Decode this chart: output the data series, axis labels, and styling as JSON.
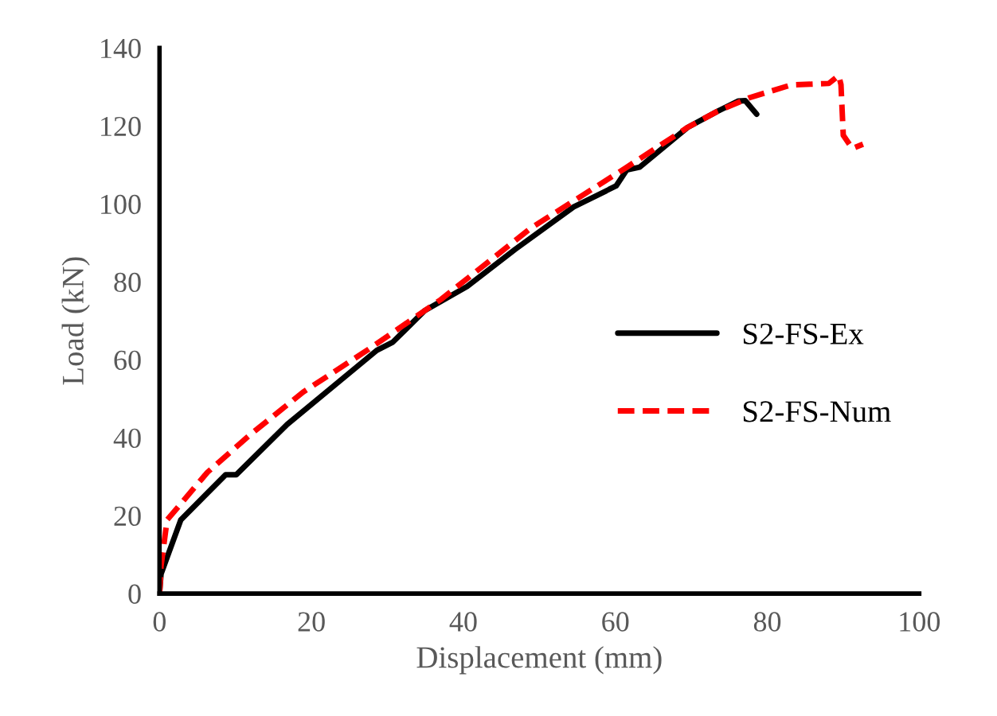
{
  "chart_data": {
    "type": "line",
    "xlabel": "Displacement (mm)",
    "ylabel": "Load (kN)",
    "xlim": [
      0,
      100
    ],
    "xticks": [
      0,
      20,
      40,
      60,
      80,
      100
    ],
    "ylim": [
      0,
      140
    ],
    "yticks": [
      0,
      20,
      40,
      60,
      80,
      100,
      120,
      140
    ],
    "grid": false,
    "legend": "right",
    "marker": "none",
    "series": [
      {
        "name": "S2-FS-Ex",
        "color": "#000000",
        "line_style": "solid",
        "x": [
          0,
          0.2,
          2.8,
          8.7,
          10.1,
          16.8,
          28.6,
          30.7,
          34.9,
          40.5,
          46.8,
          54.5,
          60.1,
          61.5,
          63.2,
          69.5,
          73.4,
          76.2,
          77.1,
          78.6
        ],
        "values": [
          0,
          5,
          18.9,
          30.5,
          30.5,
          43.4,
          62.4,
          64.5,
          72.6,
          78.8,
          88.3,
          99.2,
          104.6,
          108.7,
          109.4,
          119.6,
          123.7,
          126.4,
          126.5,
          123
        ]
      },
      {
        "name": "S2-FS-Num",
        "color": "#ff0000",
        "line_style": "dashed",
        "x": [
          0,
          0.2,
          1,
          6.3,
          11.9,
          18.9,
          27.3,
          37,
          48.9,
          61.5,
          69.5,
          73.4,
          77.6,
          83.1,
          88.1,
          89.4,
          89.7,
          90,
          91.2,
          92.6
        ],
        "values": [
          0,
          7,
          18.9,
          31.1,
          40.7,
          51.7,
          62.4,
          75.4,
          93.8,
          109.4,
          119.6,
          123.7,
          127.2,
          130.5,
          130.9,
          132.9,
          130.6,
          117.6,
          114.2,
          115.3
        ]
      }
    ]
  }
}
